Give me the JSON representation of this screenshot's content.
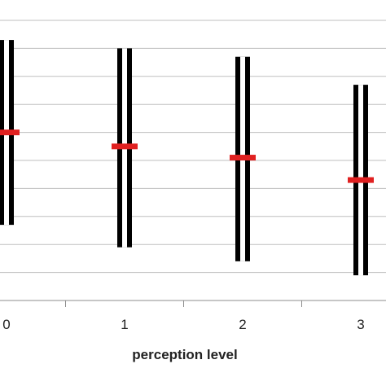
{
  "chart_data": {
    "type": "scatter",
    "xlabel": "perception level",
    "categories": [
      "0",
      "1",
      "2",
      "3"
    ],
    "grid": true,
    "series": [
      {
        "values": [
          0.6,
          0.55,
          0.51,
          0.43
        ],
        "lower": [
          0.27,
          0.19,
          0.14,
          0.09
        ],
        "upper": [
          0.93,
          0.9,
          0.87,
          0.77
        ]
      }
    ],
    "ylim": [
      0,
      1.0
    ],
    "colors": {
      "mean_marker": "#e02020",
      "range_bar": "#000000",
      "grid": "#bfbfbf",
      "axis": "#8c8c8c"
    }
  }
}
